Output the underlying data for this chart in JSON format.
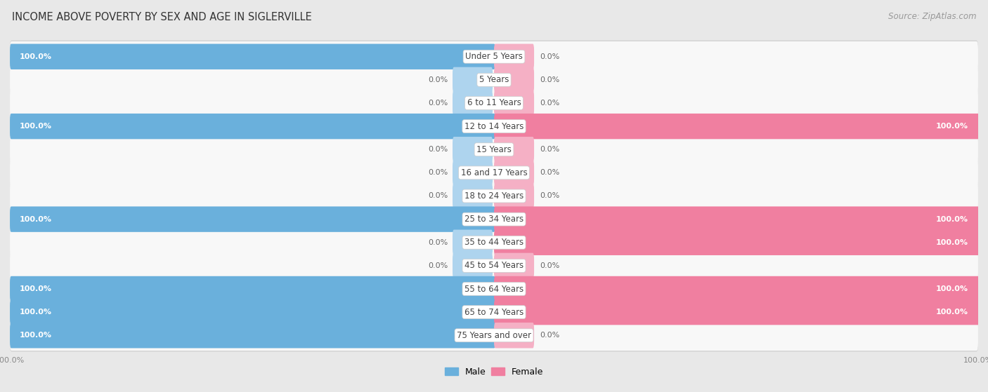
{
  "title": "INCOME ABOVE POVERTY BY SEX AND AGE IN SIGLERVILLE",
  "source": "Source: ZipAtlas.com",
  "categories": [
    "Under 5 Years",
    "5 Years",
    "6 to 11 Years",
    "12 to 14 Years",
    "15 Years",
    "16 and 17 Years",
    "18 to 24 Years",
    "25 to 34 Years",
    "35 to 44 Years",
    "45 to 54 Years",
    "55 to 64 Years",
    "65 to 74 Years",
    "75 Years and over"
  ],
  "male_values": [
    100.0,
    0.0,
    0.0,
    100.0,
    0.0,
    0.0,
    0.0,
    100.0,
    0.0,
    0.0,
    100.0,
    100.0,
    100.0
  ],
  "female_values": [
    0.0,
    0.0,
    0.0,
    100.0,
    0.0,
    0.0,
    0.0,
    100.0,
    100.0,
    0.0,
    100.0,
    100.0,
    0.0
  ],
  "male_color": "#6ab0dc",
  "female_color": "#f07fa0",
  "male_color_light": "#aed4ee",
  "female_color_light": "#f5b0c5",
  "male_label": "Male",
  "female_label": "Female",
  "page_bg": "#e8e8e8",
  "row_bg": "#f8f8f8",
  "row_border": "#d0d0d0",
  "xlim": 100,
  "title_fontsize": 10.5,
  "source_fontsize": 8.5,
  "cat_fontsize": 8.5,
  "val_fontsize": 8.0,
  "tick_fontsize": 8.0,
  "legend_fontsize": 9
}
